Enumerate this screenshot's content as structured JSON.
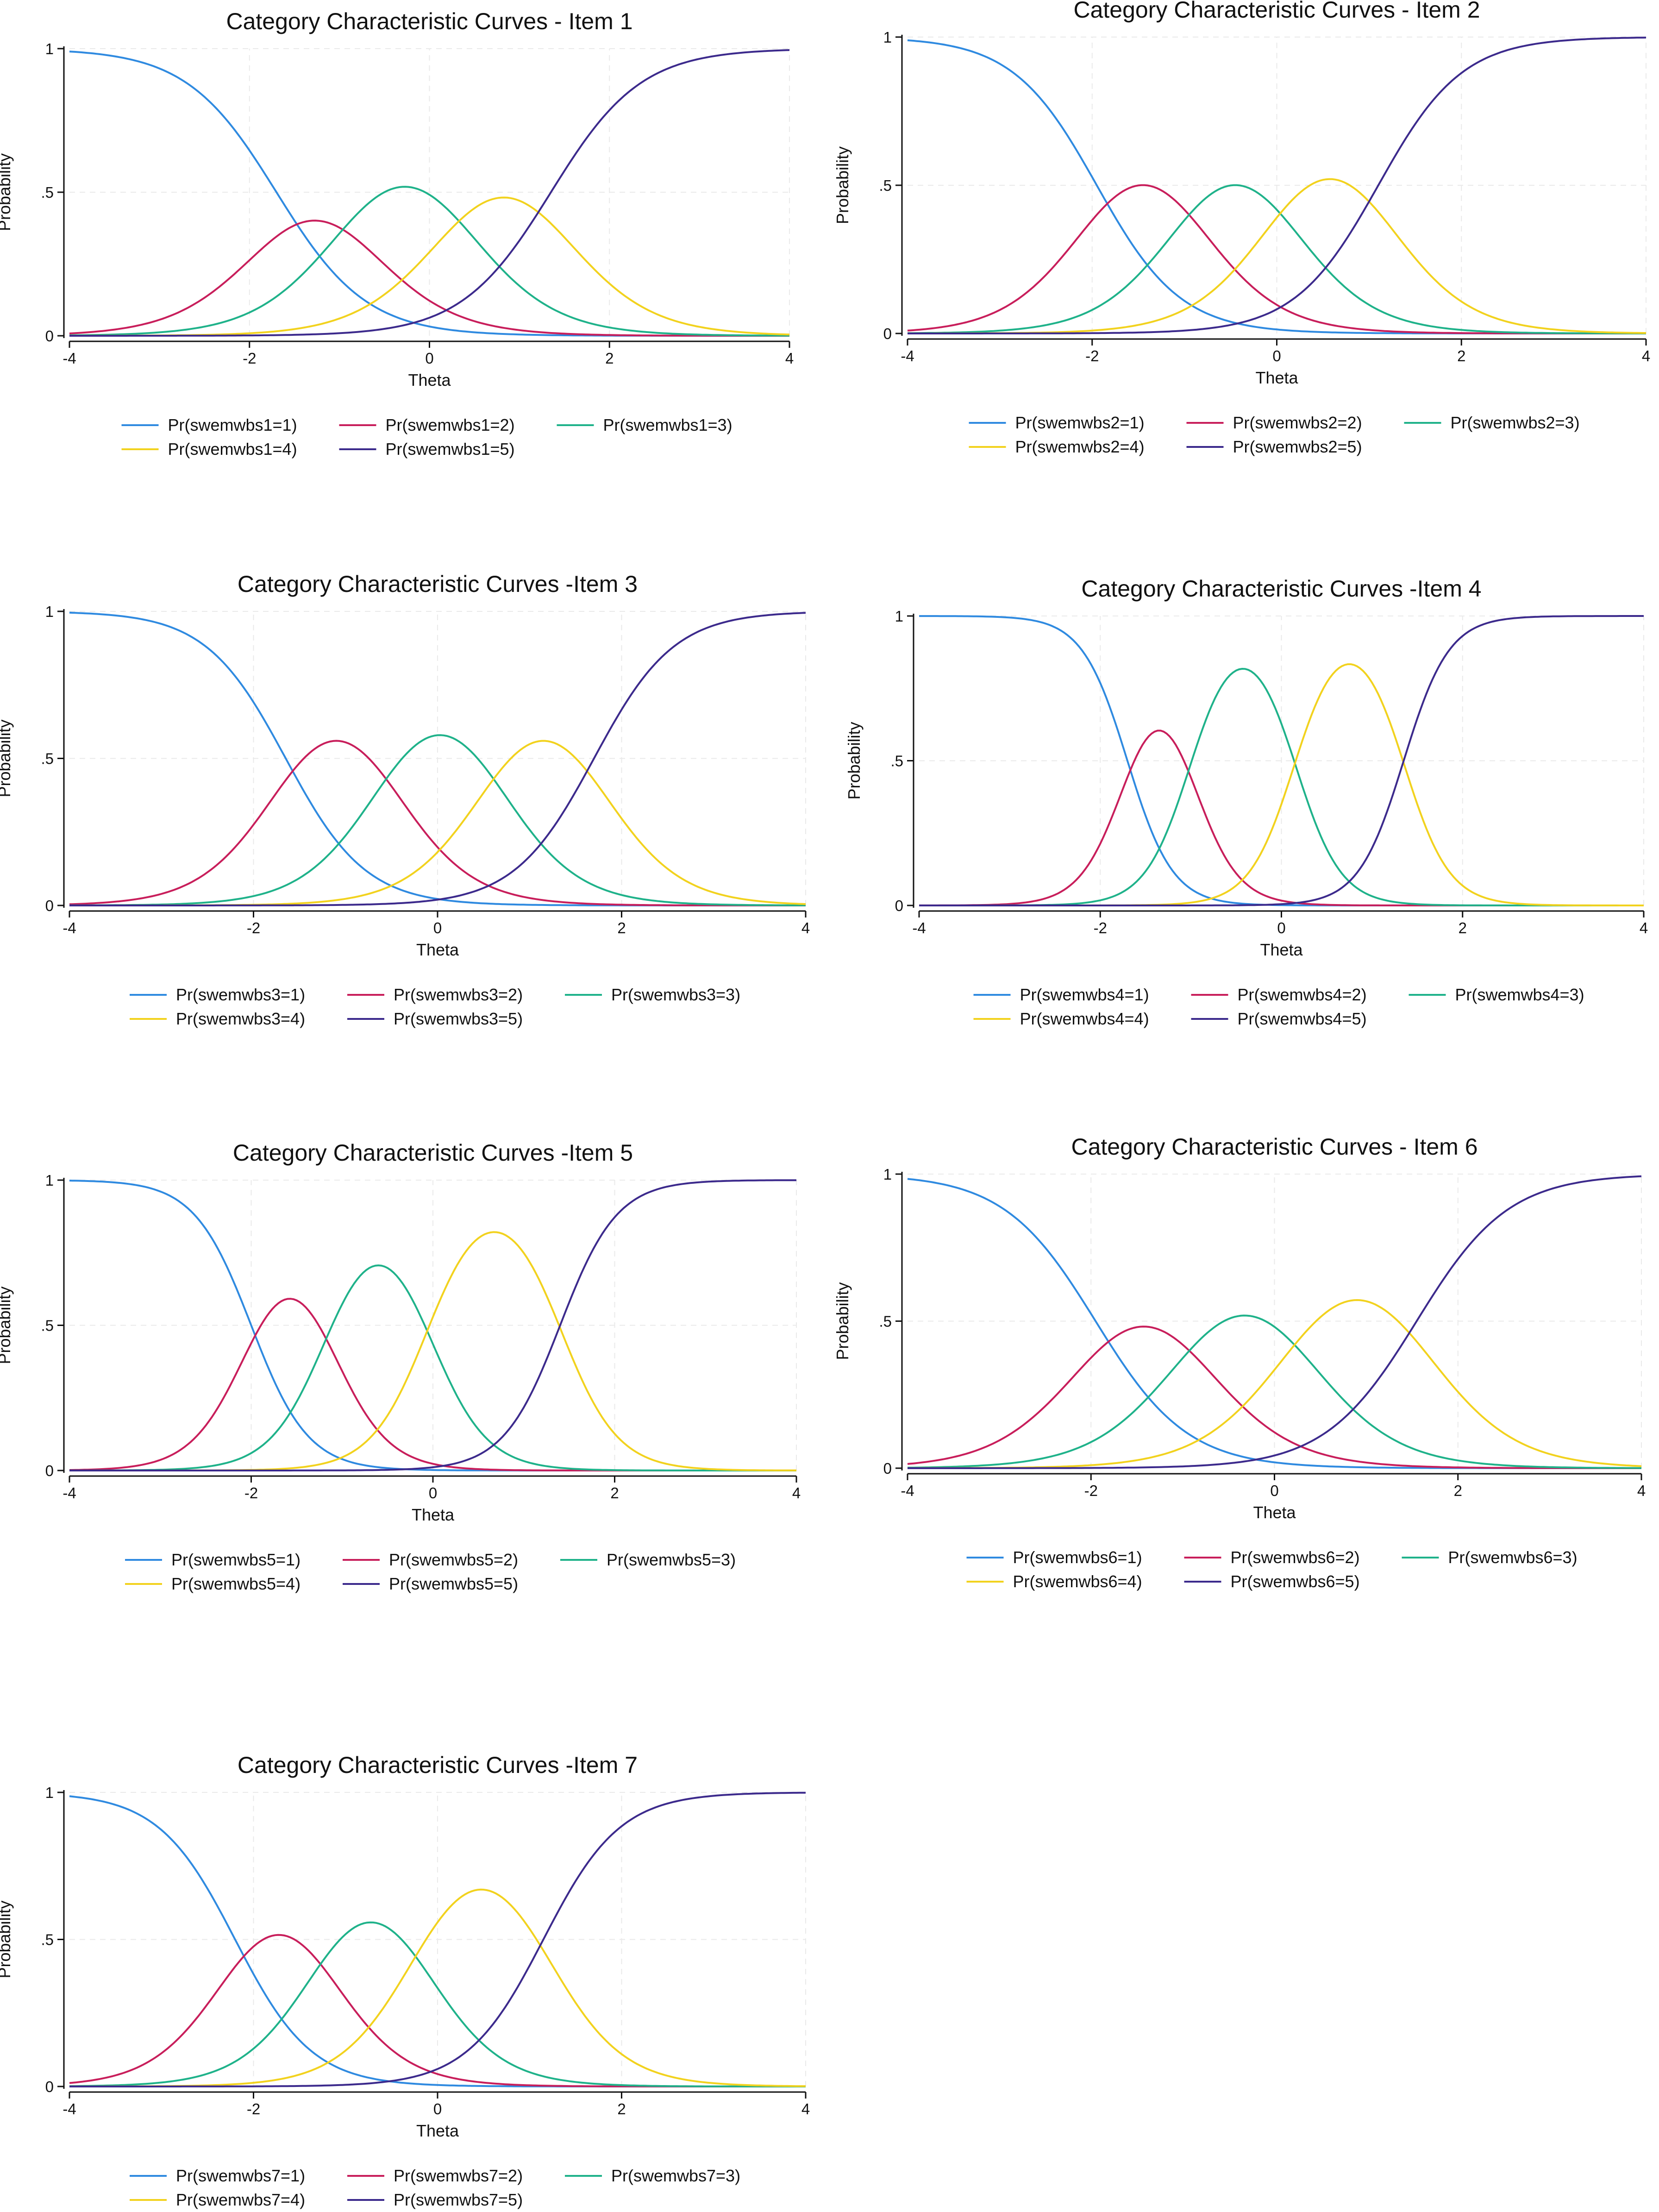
{
  "chart_data": [
    {
      "type": "line",
      "title": "Category Characteristic Curves - Item 1",
      "xlabel": "Theta",
      "ylabel": "Probability",
      "xlim": [
        -4,
        4
      ],
      "ylim": [
        0,
        1
      ],
      "xticks": [
        "-4",
        "-2",
        "0",
        "2",
        "4"
      ],
      "yticks": [
        "0",
        ".5",
        "1"
      ],
      "grid": true,
      "legend": "bottom",
      "curve_params": {
        "a": 2.0,
        "thresholds": [
          -1.7,
          -0.85,
          0.3,
          1.35
        ]
      },
      "series": [
        {
          "name": "Pr(swemwbs1=1)",
          "color": "#2f8ae0"
        },
        {
          "name": "Pr(swemwbs1=2)",
          "color": "#c81e5b"
        },
        {
          "name": "Pr(swemwbs1=3)",
          "color": "#1fb28a"
        },
        {
          "name": "Pr(swemwbs1=4)",
          "color": "#f2d21e"
        },
        {
          "name": "Pr(swemwbs1=5)",
          "color": "#3c2a8c"
        }
      ]
    },
    {
      "type": "line",
      "title": "Category Characteristic Curves - Item 2",
      "xlabel": "Theta",
      "ylabel": "Probability",
      "xlim": [
        -4,
        4
      ],
      "ylim": [
        0,
        1
      ],
      "xticks": [
        "-4",
        "-2",
        "0",
        "2",
        "4"
      ],
      "yticks": [
        "0",
        ".5",
        "1"
      ],
      "grid": true,
      "legend": "bottom",
      "curve_params": {
        "a": 2.2,
        "thresholds": [
          -1.95,
          -0.95,
          0.05,
          1.1
        ]
      },
      "series": [
        {
          "name": "Pr(swemwbs2=1)",
          "color": "#2f8ae0"
        },
        {
          "name": "Pr(swemwbs2=2)",
          "color": "#c81e5b"
        },
        {
          "name": "Pr(swemwbs2=3)",
          "color": "#1fb28a"
        },
        {
          "name": "Pr(swemwbs2=4)",
          "color": "#f2d21e"
        },
        {
          "name": "Pr(swemwbs2=5)",
          "color": "#3c2a8c"
        }
      ]
    },
    {
      "type": "line",
      "title": "Category Characteristic Curves -Item 3",
      "xlabel": "Theta",
      "ylabel": "Probability",
      "xlim": [
        -4,
        4
      ],
      "ylim": [
        0,
        1
      ],
      "xticks": [
        "-4",
        "-2",
        "0",
        "2",
        "4"
      ],
      "yticks": [
        "0",
        ".5",
        "1"
      ],
      "grid": true,
      "legend": "bottom",
      "curve_params": {
        "a": 2.3,
        "thresholds": [
          -1.65,
          -0.55,
          0.6,
          1.7
        ]
      },
      "series": [
        {
          "name": "Pr(swemwbs3=1)",
          "color": "#2f8ae0"
        },
        {
          "name": "Pr(swemwbs3=2)",
          "color": "#c81e5b"
        },
        {
          "name": "Pr(swemwbs3=3)",
          "color": "#1fb28a"
        },
        {
          "name": "Pr(swemwbs3=4)",
          "color": "#f2d21e"
        },
        {
          "name": "Pr(swemwbs3=5)",
          "color": "#3c2a8c"
        }
      ]
    },
    {
      "type": "line",
      "title": "Category Characteristic Curves -Item 4",
      "xlabel": "Theta",
      "ylabel": "Probability",
      "xlim": [
        -4,
        4
      ],
      "ylim": [
        0,
        1
      ],
      "xticks": [
        "-4",
        "-2",
        "0",
        "2",
        "4"
      ],
      "yticks": [
        "0",
        ".5",
        "1"
      ],
      "grid": true,
      "legend": "bottom",
      "curve_params": {
        "a": 4.0,
        "thresholds": [
          -1.7,
          -1.0,
          0.15,
          1.35
        ]
      },
      "series": [
        {
          "name": "Pr(swemwbs4=1)",
          "color": "#2f8ae0"
        },
        {
          "name": "Pr(swemwbs4=2)",
          "color": "#c81e5b"
        },
        {
          "name": "Pr(swemwbs4=3)",
          "color": "#1fb28a"
        },
        {
          "name": "Pr(swemwbs4=4)",
          "color": "#f2d21e"
        },
        {
          "name": "Pr(swemwbs4=5)",
          "color": "#3c2a8c"
        }
      ]
    },
    {
      "type": "line",
      "title": "Category Characteristic Curves -Item 5",
      "xlabel": "Theta",
      "ylabel": "Probability",
      "xlim": [
        -4,
        4
      ],
      "ylim": [
        0,
        1
      ],
      "xticks": [
        "-4",
        "-2",
        "0",
        "2",
        "4"
      ],
      "yticks": [
        "0",
        ".5",
        "1"
      ],
      "grid": true,
      "legend": "bottom",
      "curve_params": {
        "a": 3.2,
        "thresholds": [
          -2.0,
          -1.15,
          -0.05,
          1.4
        ]
      },
      "series": [
        {
          "name": "Pr(swemwbs5=1)",
          "color": "#2f8ae0"
        },
        {
          "name": "Pr(swemwbs5=2)",
          "color": "#c81e5b"
        },
        {
          "name": "Pr(swemwbs5=3)",
          "color": "#1fb28a"
        },
        {
          "name": "Pr(swemwbs5=4)",
          "color": "#f2d21e"
        },
        {
          "name": "Pr(swemwbs5=5)",
          "color": "#3c2a8c"
        }
      ]
    },
    {
      "type": "line",
      "title": "Category Characteristic Curves - Item 6",
      "xlabel": "Theta",
      "ylabel": "Probability",
      "xlim": [
        -4,
        4
      ],
      "ylim": [
        0,
        1
      ],
      "xticks": [
        "-4",
        "-2",
        "0",
        "2",
        "4"
      ],
      "yticks": [
        "0",
        ".5",
        "1"
      ],
      "grid": true,
      "legend": "bottom",
      "curve_params": {
        "a": 2.0,
        "thresholds": [
          -1.95,
          -0.9,
          0.25,
          1.55
        ]
      },
      "series": [
        {
          "name": "Pr(swemwbs6=1)",
          "color": "#2f8ae0"
        },
        {
          "name": "Pr(swemwbs6=2)",
          "color": "#c81e5b"
        },
        {
          "name": "Pr(swemwbs6=3)",
          "color": "#1fb28a"
        },
        {
          "name": "Pr(swemwbs6=4)",
          "color": "#f2d21e"
        },
        {
          "name": "Pr(swemwbs6=5)",
          "color": "#3c2a8c"
        }
      ]
    },
    {
      "type": "line",
      "title": "Category Characteristic Curves -Item 7",
      "xlabel": "Theta",
      "ylabel": "Probability",
      "xlim": [
        -4,
        4
      ],
      "ylim": [
        0,
        1
      ],
      "xticks": [
        "-4",
        "-2",
        "0",
        "2",
        "4"
      ],
      "yticks": [
        "0",
        ".5",
        "1"
      ],
      "grid": true,
      "legend": "bottom",
      "curve_params": {
        "a": 2.4,
        "thresholds": [
          -2.2,
          -1.25,
          -0.2,
          1.15
        ]
      },
      "series": [
        {
          "name": "Pr(swemwbs7=1)",
          "color": "#2f8ae0"
        },
        {
          "name": "Pr(swemwbs7=2)",
          "color": "#c81e5b"
        },
        {
          "name": "Pr(swemwbs7=3)",
          "color": "#1fb28a"
        },
        {
          "name": "Pr(swemwbs7=4)",
          "color": "#f2d21e"
        },
        {
          "name": "Pr(swemwbs7=5)",
          "color": "#3c2a8c"
        }
      ]
    }
  ]
}
